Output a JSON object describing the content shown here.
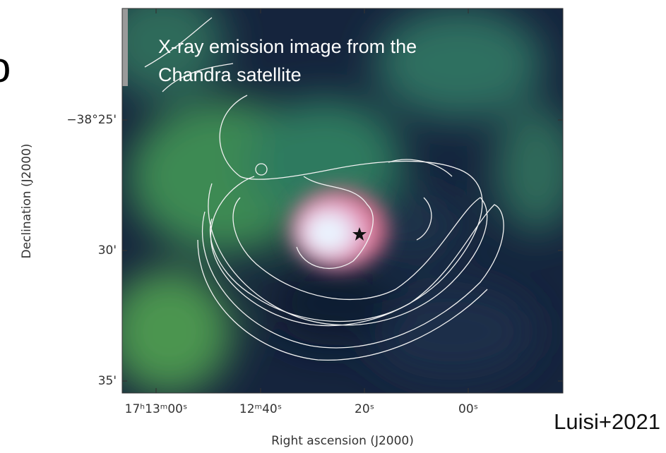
{
  "figure": {
    "fragment": "o",
    "caption_lines": [
      "X-ray emission image from the",
      "Chandra satellite"
    ],
    "y_axis": {
      "title": "Declination (J2000)",
      "tick_labels": [
        "−38°25'",
        "30'",
        "35'"
      ]
    },
    "x_axis": {
      "title": "Right ascension (J2000)",
      "tick_labels": [
        "17ʰ13ᵐ00ˢ",
        "12ᵐ40ˢ",
        "20ˢ",
        "00ˢ"
      ]
    },
    "credit": "Luisi+2021"
  }
}
